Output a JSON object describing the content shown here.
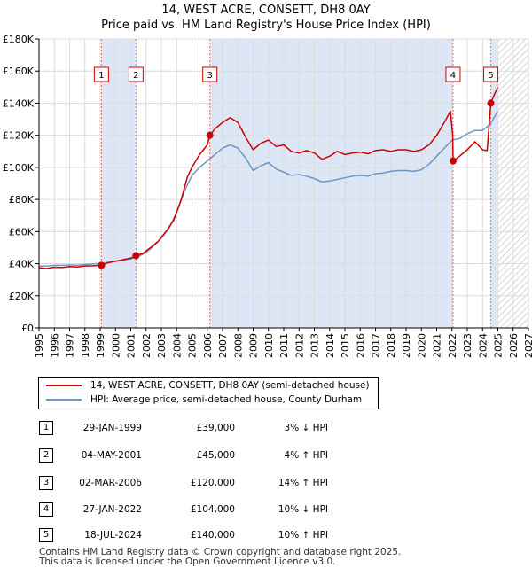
{
  "title_line1": "14, WEST ACRE, CONSETT, DH8 0AY",
  "title_line2": "Price paid vs. HM Land Registry's House Price Index (HPI)",
  "colors": {
    "property": "#cc0000",
    "hpi": "#6a96c8",
    "shade": "#dde6f5"
  },
  "chart_data": {
    "type": "line",
    "title": "14, WEST ACRE, CONSETT, DH8 0AY — Price paid vs. HM Land Registry's House Price Index (HPI)",
    "xlim": [
      1995,
      2027
    ],
    "ylim": [
      0,
      180000
    ],
    "x_ticks": [
      "1995",
      "1996",
      "1997",
      "1998",
      "1999",
      "2000",
      "2001",
      "2002",
      "2003",
      "2004",
      "2005",
      "2006",
      "2007",
      "2008",
      "2009",
      "2010",
      "2011",
      "2012",
      "2013",
      "2014",
      "2015",
      "2016",
      "2017",
      "2018",
      "2019",
      "2020",
      "2021",
      "2022",
      "2023",
      "2024",
      "2025",
      "2026",
      "2027"
    ],
    "y_ticks": [
      {
        "value": 0,
        "label": "£0"
      },
      {
        "value": 20000,
        "label": "£20K"
      },
      {
        "value": 40000,
        "label": "£40K"
      },
      {
        "value": 60000,
        "label": "£60K"
      },
      {
        "value": 80000,
        "label": "£80K"
      },
      {
        "value": 100000,
        "label": "£100K"
      },
      {
        "value": 120000,
        "label": "£120K"
      },
      {
        "value": 140000,
        "label": "£140K"
      },
      {
        "value": 160000,
        "label": "£160K"
      },
      {
        "value": 180000,
        "label": "£180K"
      }
    ],
    "grid": true,
    "shaded_ranges": [
      [
        1999.08,
        2001.34
      ],
      [
        2006.17,
        2022.07
      ],
      [
        2024.54,
        2025.0
      ]
    ],
    "future_hatch_start": 2025.0,
    "series": [
      {
        "name": "14, WEST ACRE, CONSETT, DH8 0AY (semi-detached house)",
        "color": "#cc0000",
        "points": [
          [
            1995,
            37500
          ],
          [
            1995.5,
            37000
          ],
          [
            1996,
            37800
          ],
          [
            1996.5,
            37600
          ],
          [
            1997,
            38200
          ],
          [
            1997.5,
            38000
          ],
          [
            1998,
            38600
          ],
          [
            1998.5,
            38700
          ],
          [
            1999.08,
            39000
          ],
          [
            1999.5,
            40500
          ],
          [
            2000,
            41500
          ],
          [
            2000.5,
            42500
          ],
          [
            2001,
            43500
          ],
          [
            2001.34,
            45000
          ],
          [
            2001.8,
            46500
          ],
          [
            2002.3,
            50000
          ],
          [
            2002.8,
            54000
          ],
          [
            2003.3,
            60000
          ],
          [
            2003.8,
            67000
          ],
          [
            2004.3,
            80000
          ],
          [
            2004.7,
            94000
          ],
          [
            2005,
            100000
          ],
          [
            2005.5,
            108000
          ],
          [
            2006.0,
            114000
          ],
          [
            2006.17,
            120000
          ],
          [
            2006.5,
            124000
          ],
          [
            2007,
            128000
          ],
          [
            2007.5,
            131000
          ],
          [
            2008,
            128000
          ],
          [
            2008.5,
            119000
          ],
          [
            2009,
            111000
          ],
          [
            2009.5,
            115000
          ],
          [
            2010,
            117000
          ],
          [
            2010.5,
            113000
          ],
          [
            2011,
            114000
          ],
          [
            2011.5,
            110000
          ],
          [
            2012,
            109000
          ],
          [
            2012.5,
            110500
          ],
          [
            2013,
            109000
          ],
          [
            2013.5,
            105000
          ],
          [
            2014,
            107000
          ],
          [
            2014.5,
            110000
          ],
          [
            2015,
            108000
          ],
          [
            2015.5,
            109000
          ],
          [
            2016,
            109500
          ],
          [
            2016.5,
            108500
          ],
          [
            2017,
            110500
          ],
          [
            2017.5,
            111000
          ],
          [
            2018,
            110000
          ],
          [
            2018.5,
            111000
          ],
          [
            2019,
            111000
          ],
          [
            2019.5,
            110000
          ],
          [
            2020,
            111000
          ],
          [
            2020.5,
            114000
          ],
          [
            2021,
            120000
          ],
          [
            2021.5,
            128000
          ],
          [
            2021.9,
            135000
          ],
          [
            2022.05,
            120000
          ],
          [
            2022.07,
            104000
          ],
          [
            2022.5,
            107000
          ],
          [
            2023,
            111000
          ],
          [
            2023.5,
            116000
          ],
          [
            2024,
            111000
          ],
          [
            2024.3,
            110500
          ],
          [
            2024.54,
            140000
          ],
          [
            2024.8,
            146000
          ],
          [
            2025,
            150000
          ]
        ]
      },
      {
        "name": "HPI: Average price, semi-detached house, County Durham",
        "color": "#6a96c8",
        "points": [
          [
            1995,
            38500
          ],
          [
            1995.5,
            38500
          ],
          [
            1996,
            39000
          ],
          [
            1996.5,
            39000
          ],
          [
            1997,
            39200
          ],
          [
            1997.5,
            39100
          ],
          [
            1998,
            39500
          ],
          [
            1998.5,
            39800
          ],
          [
            1999,
            40200
          ],
          [
            1999.5,
            40800
          ],
          [
            2000,
            41500
          ],
          [
            2000.5,
            42000
          ],
          [
            2001,
            43000
          ],
          [
            2001.5,
            44500
          ],
          [
            2002,
            47000
          ],
          [
            2002.5,
            51000
          ],
          [
            2003,
            56000
          ],
          [
            2003.5,
            62000
          ],
          [
            2004,
            72000
          ],
          [
            2004.5,
            85000
          ],
          [
            2005,
            95000
          ],
          [
            2005.5,
            100000
          ],
          [
            2006,
            104000
          ],
          [
            2006.5,
            108000
          ],
          [
            2007,
            112000
          ],
          [
            2007.5,
            114000
          ],
          [
            2008,
            112000
          ],
          [
            2008.5,
            106000
          ],
          [
            2009,
            98000
          ],
          [
            2009.5,
            101000
          ],
          [
            2010,
            103000
          ],
          [
            2010.5,
            99000
          ],
          [
            2011,
            97000
          ],
          [
            2011.5,
            95000
          ],
          [
            2012,
            95500
          ],
          [
            2012.5,
            94500
          ],
          [
            2013,
            93000
          ],
          [
            2013.5,
            91000
          ],
          [
            2014,
            91500
          ],
          [
            2014.5,
            92500
          ],
          [
            2015,
            93500
          ],
          [
            2015.5,
            94500
          ],
          [
            2016,
            95000
          ],
          [
            2016.5,
            94500
          ],
          [
            2017,
            96000
          ],
          [
            2017.5,
            96500
          ],
          [
            2018,
            97500
          ],
          [
            2018.5,
            98000
          ],
          [
            2019,
            98000
          ],
          [
            2019.5,
            97500
          ],
          [
            2020,
            98500
          ],
          [
            2020.5,
            102000
          ],
          [
            2021,
            107000
          ],
          [
            2021.5,
            112000
          ],
          [
            2022,
            117000
          ],
          [
            2022.5,
            118000
          ],
          [
            2023,
            121000
          ],
          [
            2023.5,
            123000
          ],
          [
            2024,
            123000
          ],
          [
            2024.5,
            127000
          ],
          [
            2025,
            135000
          ]
        ]
      }
    ],
    "sales": [
      {
        "num": "1",
        "x": 1999.08,
        "price": 39000
      },
      {
        "num": "2",
        "x": 2001.34,
        "price": 45000
      },
      {
        "num": "3",
        "x": 2006.17,
        "price": 120000
      },
      {
        "num": "4",
        "x": 2022.07,
        "price": 104000
      },
      {
        "num": "5",
        "x": 2024.54,
        "price": 140000
      }
    ]
  },
  "legend": {
    "property": "14, WEST ACRE, CONSETT, DH8 0AY (semi-detached house)",
    "hpi": "HPI: Average price, semi-detached house, County Durham"
  },
  "transactions": [
    {
      "num": "1",
      "date": "29-JAN-1999",
      "price": "£39,000",
      "rel": "3% ↓ HPI"
    },
    {
      "num": "2",
      "date": "04-MAY-2001",
      "price": "£45,000",
      "rel": "4% ↑ HPI"
    },
    {
      "num": "3",
      "date": "02-MAR-2006",
      "price": "£120,000",
      "rel": "14% ↑ HPI"
    },
    {
      "num": "4",
      "date": "27-JAN-2022",
      "price": "£104,000",
      "rel": "10% ↓ HPI"
    },
    {
      "num": "5",
      "date": "18-JUL-2024",
      "price": "£140,000",
      "rel": "10% ↑ HPI"
    }
  ],
  "footer_line1": "Contains HM Land Registry data © Crown copyright and database right 2025.",
  "footer_line2": "This data is licensed under the Open Government Licence v3.0."
}
